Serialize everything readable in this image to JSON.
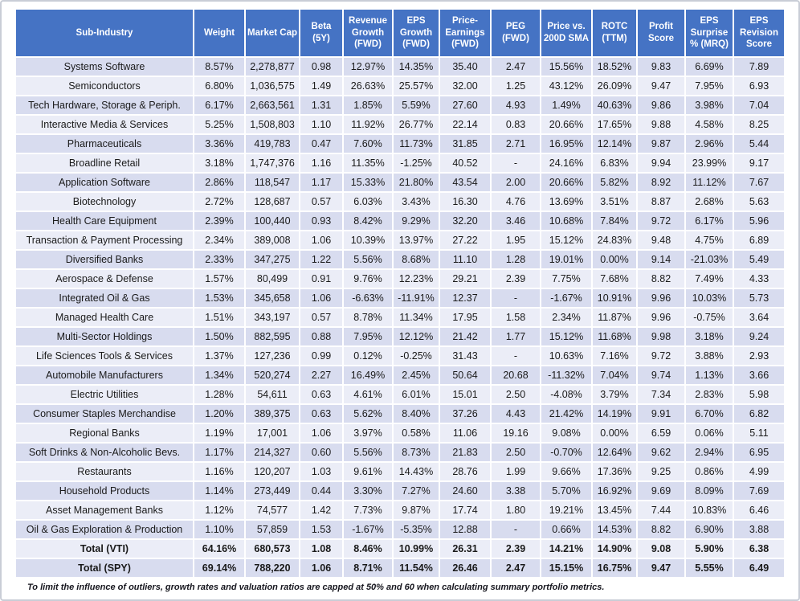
{
  "chart_data": {
    "type": "table",
    "columns": [
      "Sub-Industry",
      "Weight",
      "Market Cap",
      "Beta (5Y)",
      "Revenue Growth (FWD)",
      "EPS Growth (FWD)",
      "Price-Earnings (FWD)",
      "PEG (FWD)",
      "Price vs. 200D SMA",
      "ROTC (TTM)",
      "Profit Score",
      "EPS Surprise % (MRQ)",
      "EPS Revision Score"
    ],
    "rows": [
      [
        "Systems Software",
        "8.57%",
        "2,278,877",
        "0.98",
        "12.97%",
        "14.35%",
        "35.40",
        "2.47",
        "15.56%",
        "18.52%",
        "9.83",
        "6.69%",
        "7.89"
      ],
      [
        "Semiconductors",
        "6.80%",
        "1,036,575",
        "1.49",
        "26.63%",
        "25.57%",
        "32.00",
        "1.25",
        "43.12%",
        "26.09%",
        "9.47",
        "7.95%",
        "6.93"
      ],
      [
        "Tech Hardware, Storage & Periph.",
        "6.17%",
        "2,663,561",
        "1.31",
        "1.85%",
        "5.59%",
        "27.60",
        "4.93",
        "1.49%",
        "40.63%",
        "9.86",
        "3.98%",
        "7.04"
      ],
      [
        "Interactive Media & Services",
        "5.25%",
        "1,508,803",
        "1.10",
        "11.92%",
        "26.77%",
        "22.14",
        "0.83",
        "20.66%",
        "17.65%",
        "9.88",
        "4.58%",
        "8.25"
      ],
      [
        "Pharmaceuticals",
        "3.36%",
        "419,783",
        "0.47",
        "7.60%",
        "11.73%",
        "31.85",
        "2.71",
        "16.95%",
        "12.14%",
        "9.87",
        "2.96%",
        "5.44"
      ],
      [
        "Broadline Retail",
        "3.18%",
        "1,747,376",
        "1.16",
        "11.35%",
        "-1.25%",
        "40.52",
        "-",
        "24.16%",
        "6.83%",
        "9.94",
        "23.99%",
        "9.17"
      ],
      [
        "Application Software",
        "2.86%",
        "118,547",
        "1.17",
        "15.33%",
        "21.80%",
        "43.54",
        "2.00",
        "20.66%",
        "5.82%",
        "8.92",
        "11.12%",
        "7.67"
      ],
      [
        "Biotechnology",
        "2.72%",
        "128,687",
        "0.57",
        "6.03%",
        "3.43%",
        "16.30",
        "4.76",
        "13.69%",
        "3.51%",
        "8.87",
        "2.68%",
        "5.63"
      ],
      [
        "Health Care Equipment",
        "2.39%",
        "100,440",
        "0.93",
        "8.42%",
        "9.29%",
        "32.20",
        "3.46",
        "10.68%",
        "7.84%",
        "9.72",
        "6.17%",
        "5.96"
      ],
      [
        "Transaction & Payment Processing",
        "2.34%",
        "389,008",
        "1.06",
        "10.39%",
        "13.97%",
        "27.22",
        "1.95",
        "15.12%",
        "24.83%",
        "9.48",
        "4.75%",
        "6.89"
      ],
      [
        "Diversified Banks",
        "2.33%",
        "347,275",
        "1.22",
        "5.56%",
        "8.68%",
        "11.10",
        "1.28",
        "19.01%",
        "0.00%",
        "9.14",
        "-21.03%",
        "5.49"
      ],
      [
        "Aerospace & Defense",
        "1.57%",
        "80,499",
        "0.91",
        "9.76%",
        "12.23%",
        "29.21",
        "2.39",
        "7.75%",
        "7.68%",
        "8.82",
        "7.49%",
        "4.33"
      ],
      [
        "Integrated Oil & Gas",
        "1.53%",
        "345,658",
        "1.06",
        "-6.63%",
        "-11.91%",
        "12.37",
        "-",
        "-1.67%",
        "10.91%",
        "9.96",
        "10.03%",
        "5.73"
      ],
      [
        "Managed Health Care",
        "1.51%",
        "343,197",
        "0.57",
        "8.78%",
        "11.34%",
        "17.95",
        "1.58",
        "2.34%",
        "11.87%",
        "9.96",
        "-0.75%",
        "3.64"
      ],
      [
        "Multi-Sector Holdings",
        "1.50%",
        "882,595",
        "0.88",
        "7.95%",
        "12.12%",
        "21.42",
        "1.77",
        "15.12%",
        "11.68%",
        "9.98",
        "3.18%",
        "9.24"
      ],
      [
        "Life Sciences Tools & Services",
        "1.37%",
        "127,236",
        "0.99",
        "0.12%",
        "-0.25%",
        "31.43",
        "-",
        "10.63%",
        "7.16%",
        "9.72",
        "3.88%",
        "2.93"
      ],
      [
        "Automobile Manufacturers",
        "1.34%",
        "520,274",
        "2.27",
        "16.49%",
        "2.45%",
        "50.64",
        "20.68",
        "-11.32%",
        "7.04%",
        "9.74",
        "1.13%",
        "3.66"
      ],
      [
        "Electric Utilities",
        "1.28%",
        "54,611",
        "0.63",
        "4.61%",
        "6.01%",
        "15.01",
        "2.50",
        "-4.08%",
        "3.79%",
        "7.34",
        "2.83%",
        "5.98"
      ],
      [
        "Consumer Staples Merchandise",
        "1.20%",
        "389,375",
        "0.63",
        "5.62%",
        "8.40%",
        "37.26",
        "4.43",
        "21.42%",
        "14.19%",
        "9.91",
        "6.70%",
        "6.82"
      ],
      [
        "Regional Banks",
        "1.19%",
        "17,001",
        "1.06",
        "3.97%",
        "0.58%",
        "11.06",
        "19.16",
        "9.08%",
        "0.00%",
        "6.59",
        "0.06%",
        "5.11"
      ],
      [
        "Soft Drinks & Non-Alcoholic Bevs.",
        "1.17%",
        "214,327",
        "0.60",
        "5.56%",
        "8.73%",
        "21.83",
        "2.50",
        "-0.70%",
        "12.64%",
        "9.62",
        "2.94%",
        "6.95"
      ],
      [
        "Restaurants",
        "1.16%",
        "120,207",
        "1.03",
        "9.61%",
        "14.43%",
        "28.76",
        "1.99",
        "9.66%",
        "17.36%",
        "9.25",
        "0.86%",
        "4.99"
      ],
      [
        "Household Products",
        "1.14%",
        "273,449",
        "0.44",
        "3.30%",
        "7.27%",
        "24.60",
        "3.38",
        "5.70%",
        "16.92%",
        "9.69",
        "8.09%",
        "7.69"
      ],
      [
        "Asset Management Banks",
        "1.12%",
        "74,577",
        "1.42",
        "7.73%",
        "9.87%",
        "17.74",
        "1.80",
        "19.21%",
        "13.45%",
        "7.44",
        "10.83%",
        "6.46"
      ],
      [
        "Oil & Gas Exploration & Production",
        "1.10%",
        "57,859",
        "1.53",
        "-1.67%",
        "-5.35%",
        "12.88",
        "-",
        "0.66%",
        "14.53%",
        "8.82",
        "6.90%",
        "3.88"
      ]
    ],
    "total_rows": [
      [
        "Total (VTI)",
        "64.16%",
        "680,573",
        "1.08",
        "8.46%",
        "10.99%",
        "26.31",
        "2.39",
        "14.21%",
        "14.90%",
        "9.08",
        "5.90%",
        "6.38"
      ],
      [
        "Total (SPY)",
        "69.14%",
        "788,220",
        "1.06",
        "8.71%",
        "11.54%",
        "26.46",
        "2.47",
        "15.15%",
        "16.75%",
        "9.47",
        "5.55%",
        "6.49"
      ]
    ],
    "layout": {
      "header_bg": "#4573c4",
      "row_stripe_dark": "#d8dcef",
      "row_stripe_light": "#ebedf7",
      "gridline_color": "#ffffff"
    }
  },
  "footnote": "To limit the influence of outliers, growth rates and valuation ratios are capped at 50% and 60 when calculating summary portfolio metrics."
}
